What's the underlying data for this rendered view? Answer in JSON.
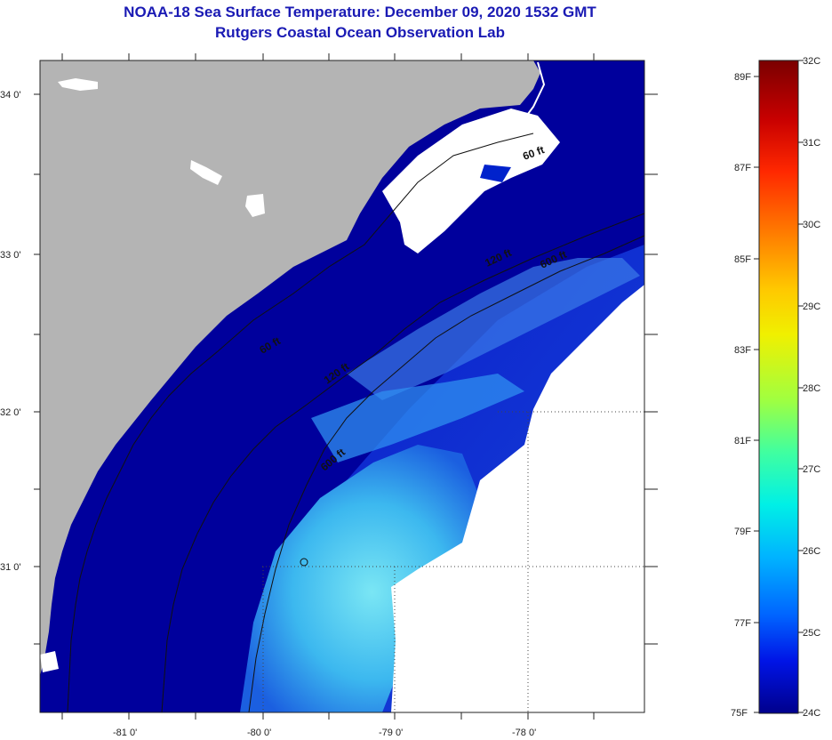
{
  "title": {
    "line1": "NOAA-18 Sea Surface Temperature:  December 09, 2020 1532 GMT",
    "line2": "Rutgers Coastal Ocean Observation Lab"
  },
  "map": {
    "lat_labels": [
      "34 0'",
      "33 0'",
      "32 0'",
      "31 0'"
    ],
    "lon_labels": [
      "-81 0'",
      "-80 0'",
      "-79 0'",
      "-78 0'"
    ],
    "isobath_labels": [
      "60 ft",
      "120 ft",
      "600 ft",
      "60 ft",
      "120 ft",
      "600 ft"
    ],
    "colors": {
      "land": "#b4b4b4",
      "cloud": "#ffffff",
      "water_cold": "#00009c",
      "water_mid": "#0a2ad8",
      "water_warm": "#37b4f0",
      "water_warmest": "#78e6f5"
    }
  },
  "colorbar": {
    "fahrenheit_labels": [
      "89F",
      "87F",
      "85F",
      "83F",
      "81F",
      "79F",
      "77F",
      "75F"
    ],
    "celsius_labels": [
      "32C",
      "31C",
      "30C",
      "29C",
      "28C",
      "27C",
      "26C",
      "25C",
      "24C"
    ],
    "colors_top_to_bottom": [
      "#7a0000",
      "#c80000",
      "#ff2800",
      "#ff7800",
      "#ffc800",
      "#f0f000",
      "#a0ff40",
      "#40ffa0",
      "#00f0e6",
      "#00b4ff",
      "#0064ff",
      "#0014e6",
      "#00008c"
    ]
  }
}
